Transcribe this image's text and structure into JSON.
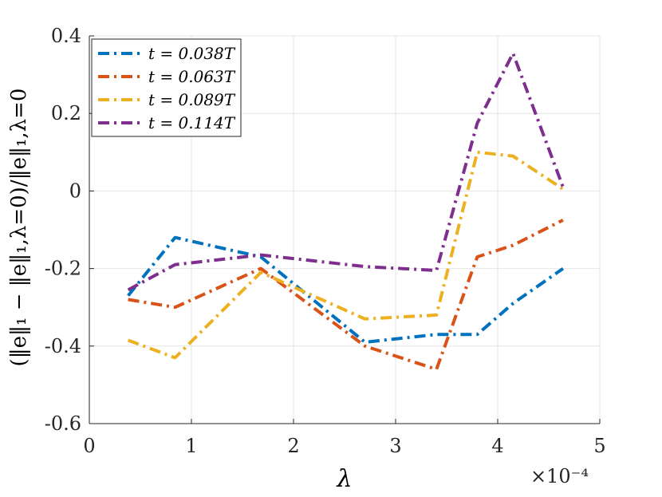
{
  "chart_data": {
    "type": "line",
    "title": "",
    "xlabel": "λ",
    "ylabel": "(‖e‖₁ − ‖e‖₁,λ=0)/‖e‖₁,λ=0",
    "x_multiplier_label": "×10⁻⁴",
    "xlim": [
      0,
      5
    ],
    "ylim": [
      -0.6,
      0.4
    ],
    "xticks": [
      "0",
      "1",
      "2",
      "3",
      "4",
      "5"
    ],
    "yticks": [
      "-0.6",
      "-0.4",
      "-0.2",
      "0",
      "0.2",
      "0.4"
    ],
    "grid": true,
    "legend_position": "top-left",
    "x": [
      0.38,
      0.84,
      1.68,
      2.7,
      3.4,
      3.8,
      4.15,
      4.64
    ],
    "series": [
      {
        "name": "t = 0.038T",
        "color": "#0072BD",
        "values": [
          -0.27,
          -0.12,
          -0.17,
          -0.39,
          -0.37,
          -0.37,
          -0.29,
          -0.2
        ]
      },
      {
        "name": "t = 0.063T",
        "color": "#D95319",
        "values": [
          -0.28,
          -0.3,
          -0.2,
          -0.4,
          -0.46,
          -0.17,
          -0.14,
          -0.075
        ]
      },
      {
        "name": "t = 0.089T",
        "color": "#EDB120",
        "values": [
          -0.385,
          -0.43,
          -0.21,
          -0.33,
          -0.32,
          0.1,
          0.09,
          0.005
        ]
      },
      {
        "name": "t = 0.114T",
        "color": "#7E2F8E",
        "values": [
          -0.255,
          -0.19,
          -0.165,
          -0.195,
          -0.205,
          0.175,
          0.355,
          0.01
        ]
      }
    ]
  }
}
